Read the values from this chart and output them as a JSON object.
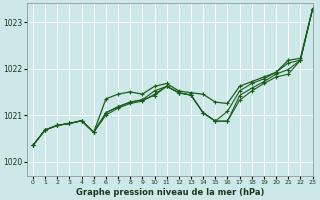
{
  "title": "Graphe pression niveau de la mer (hPa)",
  "bg_color": "#cce8e8",
  "grid_color": "#ffffff",
  "line_color": "#1a5c1a",
  "marker_color": "#1a5c1a",
  "xlim": [
    -0.5,
    23
  ],
  "ylim": [
    1019.7,
    1023.4
  ],
  "yticks": [
    1020,
    1021,
    1022,
    1023
  ],
  "xticks": [
    0,
    1,
    2,
    3,
    4,
    5,
    6,
    7,
    8,
    9,
    10,
    11,
    12,
    13,
    14,
    15,
    16,
    17,
    18,
    19,
    20,
    21,
    22,
    23
  ],
  "series": [
    [
      1020.35,
      1020.68,
      1020.78,
      1020.82,
      1020.88,
      1020.63,
      1021.05,
      1021.18,
      1021.28,
      1021.33,
      1021.52,
      1021.62,
      1021.48,
      1021.43,
      1021.05,
      1020.87,
      1020.87,
      1021.32,
      1021.52,
      1021.68,
      1021.82,
      1021.88,
      1022.18,
      1023.28
    ],
    [
      1020.35,
      1020.68,
      1020.78,
      1020.82,
      1020.88,
      1020.63,
      1021.05,
      1021.18,
      1021.28,
      1021.33,
      1021.42,
      1021.62,
      1021.48,
      1021.43,
      1021.05,
      1020.87,
      1020.87,
      1021.42,
      1021.58,
      1021.72,
      1021.88,
      1021.98,
      1022.18,
      1023.28
    ],
    [
      1020.35,
      1020.68,
      1020.78,
      1020.82,
      1020.88,
      1020.63,
      1021.0,
      1021.15,
      1021.25,
      1021.3,
      1021.45,
      1021.62,
      1021.48,
      1021.43,
      1021.05,
      1020.87,
      1021.08,
      1021.52,
      1021.68,
      1021.78,
      1021.92,
      1022.12,
      1022.18,
      1023.28
    ],
    [
      1020.35,
      1020.68,
      1020.78,
      1020.82,
      1020.88,
      1020.63,
      1021.35,
      1021.45,
      1021.5,
      1021.45,
      1021.62,
      1021.68,
      1021.52,
      1021.48,
      1021.45,
      1021.28,
      1021.25,
      1021.62,
      1021.72,
      1021.82,
      1021.92,
      1022.18,
      1022.22,
      1023.28
    ]
  ]
}
